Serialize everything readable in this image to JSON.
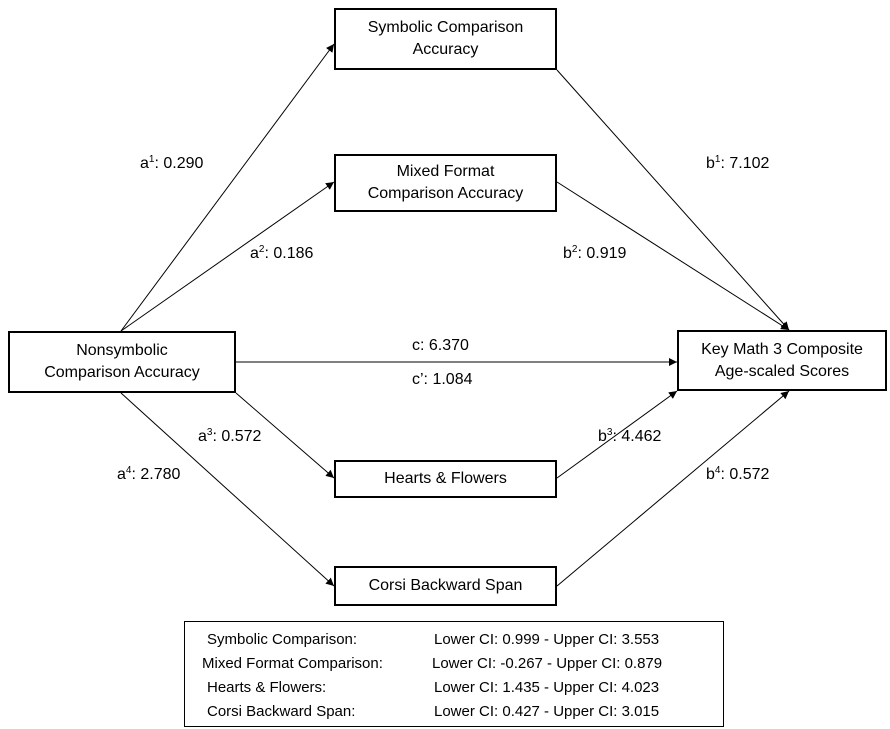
{
  "nodes": {
    "nonsymbolic": {
      "line1": "Nonsymbolic",
      "line2": "Comparison Accuracy"
    },
    "symbolic": {
      "line1": "Symbolic Comparison",
      "line2": "Accuracy"
    },
    "mixed": {
      "line1": "Mixed Format",
      "line2": "Comparison Accuracy"
    },
    "hearts": {
      "line1": "Hearts & Flowers"
    },
    "corsi": {
      "line1": "Corsi Backward Span"
    },
    "keymath": {
      "line1": "Key Math 3 Composite",
      "line2": "Age-scaled Scores"
    }
  },
  "paths": {
    "a1": {
      "letter": "a",
      "sup": "1",
      "value": ": 0.290"
    },
    "a2": {
      "letter": "a",
      "sup": "2",
      "value": ": 0.186"
    },
    "a3": {
      "letter": "a",
      "sup": "3",
      "value": ": 0.572"
    },
    "a4": {
      "letter": "a",
      "sup": "4",
      "value": ": 2.780"
    },
    "b1": {
      "letter": "b",
      "sup": "1",
      "value": ": 7.102"
    },
    "b2": {
      "letter": "b",
      "sup": "2",
      "value": ": 0.919"
    },
    "b3": {
      "letter": "b",
      "sup": "3",
      "value": ": 4.462"
    },
    "b4": {
      "letter": "b",
      "sup": "4",
      "value": ": 0.572"
    },
    "c": "c: 6.370",
    "c_prime": "c’: 1.084"
  },
  "ci_table": [
    {
      "name": "Symbolic Comparison:",
      "value": "Lower CI: 0.999 - Upper CI: 3.553"
    },
    {
      "name": "Mixed Format Comparison:",
      "value": "Lower CI: -0.267 - Upper CI: 0.879"
    },
    {
      "name": "Hearts & Flowers:",
      "value": "Lower CI: 1.435 - Upper CI: 4.023"
    },
    {
      "name": "Corsi Backward Span:",
      "value": "Lower CI: 0.427 - Upper CI: 3.015"
    }
  ]
}
